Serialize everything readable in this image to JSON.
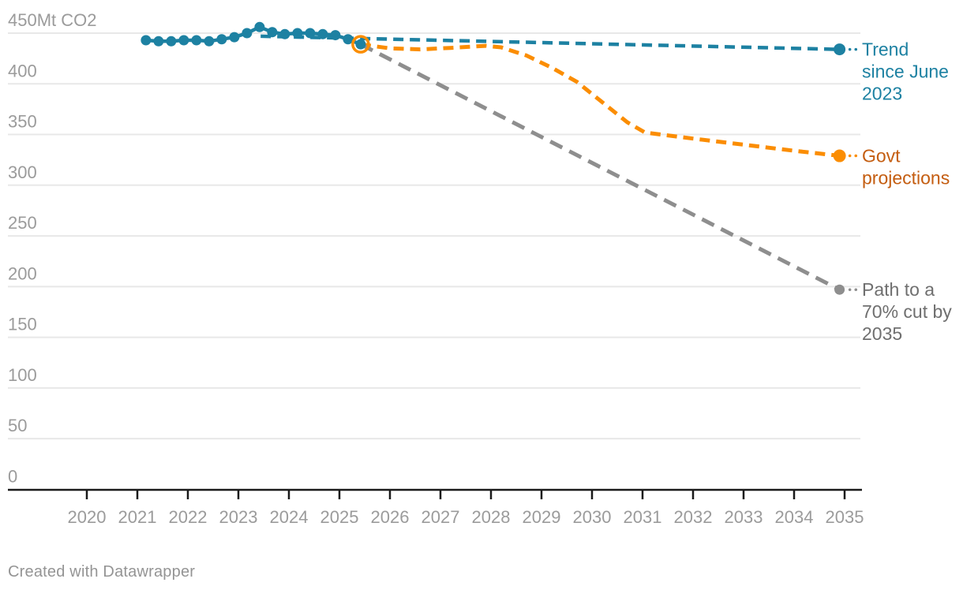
{
  "footer": {
    "credit_label": "Created with Datawrapper"
  },
  "chart_data": {
    "type": "line",
    "title": "",
    "xlabel": "",
    "ylabel": "Mt CO2",
    "ylim": [
      0,
      450
    ],
    "grid": "horizontal",
    "legend_position": "right-edge-annotations",
    "y_ticks": [
      {
        "value": 0,
        "label": "0"
      },
      {
        "value": 50,
        "label": "50"
      },
      {
        "value": 100,
        "label": "100"
      },
      {
        "value": 150,
        "label": "150"
      },
      {
        "value": 200,
        "label": "200"
      },
      {
        "value": 250,
        "label": "250"
      },
      {
        "value": 300,
        "label": "300"
      },
      {
        "value": 350,
        "label": "350"
      },
      {
        "value": 400,
        "label": "400"
      },
      {
        "value": 450,
        "label": "450Mt CO2"
      }
    ],
    "x_tick_labels": [
      "2020",
      "2021",
      "2022",
      "2023",
      "2024",
      "2025",
      "2026",
      "2027",
      "2028",
      "2029",
      "2030",
      "2031",
      "2032",
      "2033",
      "2034",
      "2035"
    ],
    "series": [
      {
        "name": "historical-emissions",
        "style": "solid",
        "color": "#1d81a2",
        "markers": true,
        "marker_r": 6.5,
        "points": [
          [
            2021.17,
            443
          ],
          [
            2021.42,
            442
          ],
          [
            2021.67,
            442
          ],
          [
            2021.92,
            443
          ],
          [
            2022.17,
            443
          ],
          [
            2022.42,
            442
          ],
          [
            2022.67,
            444
          ],
          [
            2022.92,
            446
          ],
          [
            2023.17,
            450
          ],
          [
            2023.42,
            456
          ],
          [
            2023.67,
            451
          ],
          [
            2023.92,
            449
          ],
          [
            2024.17,
            450
          ],
          [
            2024.42,
            450
          ],
          [
            2024.67,
            449
          ],
          [
            2024.92,
            448
          ],
          [
            2025.17,
            444
          ],
          [
            2025.42,
            439
          ]
        ]
      },
      {
        "name": "trend-since-june-2023",
        "style": "dashed",
        "color": "#1d81a2",
        "dash": "13 8",
        "stroke_width": 4.5,
        "end_dot": true,
        "end_dot_r": 7.5,
        "points": [
          [
            2023.44,
            447
          ],
          [
            2034.9,
            434
          ]
        ],
        "label": {
          "lines": [
            "Trend",
            "since June",
            "2023"
          ],
          "color": "#1d81a2"
        }
      },
      {
        "name": "govt-projections",
        "style": "dashed",
        "color": "#fb8d02",
        "dash": "13 8",
        "stroke_width": 5,
        "start_ring": true,
        "end_dot": true,
        "end_dot_r": 8,
        "points": [
          [
            2025.42,
            439
          ],
          [
            2026.0,
            435
          ],
          [
            2026.6,
            434
          ],
          [
            2027.2,
            435.5
          ],
          [
            2027.9,
            437.5
          ],
          [
            2028.2,
            436
          ],
          [
            2028.7,
            428
          ],
          [
            2029.2,
            416
          ],
          [
            2029.7,
            402
          ],
          [
            2030.2,
            382
          ],
          [
            2030.7,
            362
          ],
          [
            2031.05,
            352
          ],
          [
            2032.0,
            346
          ],
          [
            2033.0,
            340
          ],
          [
            2034.0,
            334
          ],
          [
            2034.9,
            329
          ]
        ],
        "label": {
          "lines": [
            "Govt",
            "projections"
          ],
          "color": "#c45d10"
        }
      },
      {
        "name": "path-to-70pct-cut-by-2035",
        "style": "dashed",
        "color": "#8e8e8e",
        "dash": "17 10",
        "stroke_width": 5,
        "end_dot": true,
        "end_dot_r": 6.5,
        "points": [
          [
            2025.42,
            439
          ],
          [
            2034.9,
            197
          ]
        ],
        "label": {
          "lines": [
            "Path to a",
            "70% cut by",
            "2035"
          ],
          "color": "#6f6f6f"
        }
      }
    ]
  }
}
